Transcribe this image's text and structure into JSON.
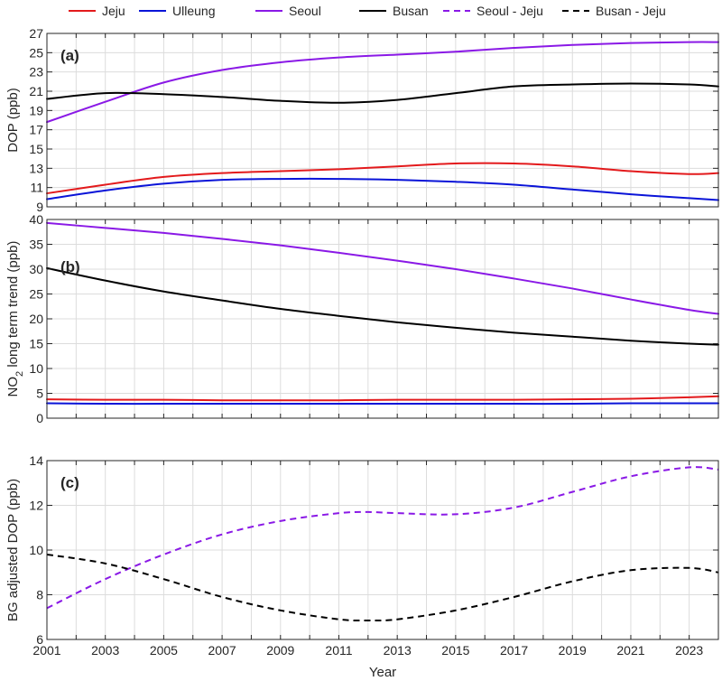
{
  "chart_data": {
    "type": "line",
    "xlabel": "Year",
    "xlim": [
      2001,
      2024
    ],
    "x_ticks": [
      2001,
      2003,
      2005,
      2007,
      2009,
      2011,
      2013,
      2015,
      2017,
      2019,
      2021,
      2023
    ],
    "x_tick_labels": [
      "2001",
      "2003",
      "2005",
      "2007",
      "2009",
      "2011",
      "2013",
      "2015",
      "2017",
      "2019",
      "2021",
      "2023"
    ],
    "grid": true,
    "legend": {
      "placement": "top",
      "entries": [
        {
          "name": "Jeju",
          "color": "#e31a1c",
          "style": "solid"
        },
        {
          "name": "Ulleung",
          "color": "#0a14d8",
          "style": "solid"
        },
        {
          "name": "Seoul",
          "color": "#8a19e6",
          "style": "solid"
        },
        {
          "name": "Busan",
          "color": "#000000",
          "style": "solid"
        },
        {
          "name": "Seoul - Jeju",
          "color": "#8a19e6",
          "style": "dashed"
        },
        {
          "name": "Busan - Jeju",
          "color": "#000000",
          "style": "dashed"
        }
      ]
    },
    "panels": [
      {
        "label": "(a)",
        "ylabel": "DOP (ppb)",
        "ylim": [
          9,
          27
        ],
        "y_ticks": [
          9,
          11,
          13,
          15,
          17,
          19,
          21,
          23,
          25,
          27
        ],
        "y_tick_labels": [
          "9",
          "11",
          "13",
          "15",
          "17",
          "19",
          "21",
          "23",
          "25",
          "27"
        ],
        "x_values": [
          2001,
          2003,
          2005,
          2007,
          2009,
          2011,
          2013,
          2015,
          2017,
          2019,
          2021,
          2023,
          2024
        ],
        "series": [
          {
            "name": "Jeju",
            "color": "#e31a1c",
            "style": "solid",
            "values": [
              10.4,
              11.3,
              12.1,
              12.5,
              12.7,
              12.9,
              13.2,
              13.5,
              13.5,
              13.2,
              12.7,
              12.4,
              12.5
            ]
          },
          {
            "name": "Ulleung",
            "color": "#0a14d8",
            "style": "solid",
            "values": [
              9.8,
              10.7,
              11.4,
              11.8,
              11.9,
              11.9,
              11.8,
              11.6,
              11.3,
              10.8,
              10.3,
              9.9,
              9.7
            ]
          },
          {
            "name": "Seoul",
            "color": "#8a19e6",
            "style": "solid",
            "values": [
              17.8,
              19.9,
              21.9,
              23.2,
              24.0,
              24.5,
              24.8,
              25.1,
              25.5,
              25.8,
              26.0,
              26.1,
              26.1
            ]
          },
          {
            "name": "Busan",
            "color": "#000000",
            "style": "solid",
            "values": [
              20.2,
              20.8,
              20.7,
              20.4,
              20.0,
              19.8,
              20.1,
              20.8,
              21.5,
              21.7,
              21.8,
              21.7,
              21.5
            ]
          }
        ]
      },
      {
        "label": "(b)",
        "ylabel_main": "NO",
        "ylabel_sub": "2",
        "ylabel_rest": " long term trend (ppb)",
        "ylim": [
          0,
          40
        ],
        "y_ticks": [
          0,
          5,
          10,
          15,
          20,
          25,
          30,
          35,
          40
        ],
        "y_tick_labels": [
          "0",
          "5",
          "10",
          "15",
          "20",
          "25",
          "30",
          "35",
          "40"
        ],
        "x_values": [
          2001,
          2003,
          2005,
          2007,
          2009,
          2011,
          2013,
          2015,
          2017,
          2019,
          2021,
          2023,
          2024
        ],
        "series": [
          {
            "name": "Jeju",
            "color": "#e31a1c",
            "style": "solid",
            "values": [
              3.8,
              3.7,
              3.7,
              3.6,
              3.6,
              3.6,
              3.7,
              3.7,
              3.7,
              3.8,
              3.9,
              4.2,
              4.4
            ]
          },
          {
            "name": "Ulleung",
            "color": "#0a14d8",
            "style": "solid",
            "values": [
              3.0,
              2.9,
              2.9,
              2.9,
              2.9,
              2.9,
              2.9,
              2.9,
              2.9,
              2.9,
              3.0,
              3.0,
              3.0
            ]
          },
          {
            "name": "Seoul",
            "color": "#8a19e6",
            "style": "solid",
            "values": [
              39.3,
              38.3,
              37.3,
              36.1,
              34.8,
              33.3,
              31.7,
              30.0,
              28.1,
              26.1,
              23.9,
              21.8,
              21.0
            ]
          },
          {
            "name": "Busan",
            "color": "#000000",
            "style": "solid",
            "values": [
              30.2,
              27.7,
              25.5,
              23.7,
              22.0,
              20.6,
              19.3,
              18.2,
              17.2,
              16.4,
              15.6,
              15.0,
              14.8
            ]
          }
        ]
      },
      {
        "label": "(c)",
        "ylabel": "BG adjusted DOP (ppb)",
        "ylim": [
          6,
          14
        ],
        "y_ticks": [
          6,
          8,
          10,
          12,
          14
        ],
        "y_tick_labels": [
          "6",
          "8",
          "10",
          "12",
          "14"
        ],
        "x_values": [
          2001,
          2003,
          2005,
          2007,
          2009,
          2011,
          2012,
          2013,
          2015,
          2017,
          2019,
          2021,
          2023,
          2024
        ],
        "series": [
          {
            "name": "Seoul - Jeju",
            "color": "#8a19e6",
            "style": "dashed",
            "values": [
              7.4,
              8.7,
              9.8,
              10.7,
              11.3,
              11.65,
              11.7,
              11.65,
              11.6,
              11.9,
              12.6,
              13.3,
              13.7,
              13.6
            ]
          },
          {
            "name": "Busan - Jeju",
            "color": "#000000",
            "style": "dashed",
            "values": [
              9.8,
              9.4,
              8.7,
              7.9,
              7.3,
              6.9,
              6.85,
              6.9,
              7.3,
              7.9,
              8.6,
              9.1,
              9.2,
              9.0
            ]
          }
        ]
      }
    ]
  }
}
